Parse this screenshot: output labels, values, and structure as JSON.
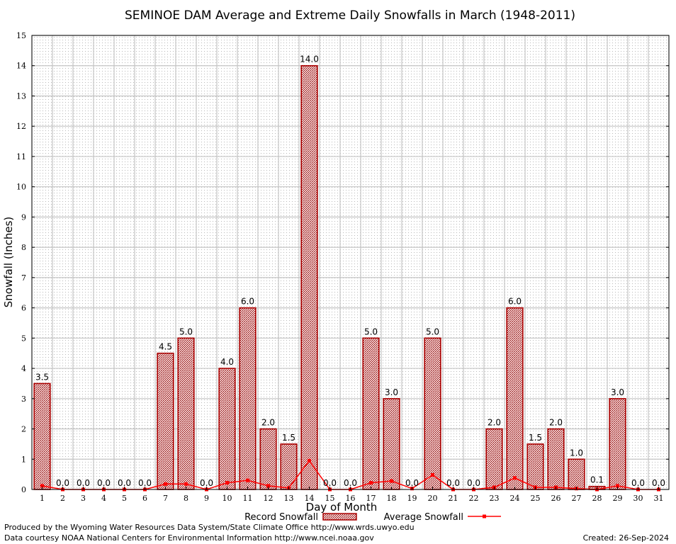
{
  "chart_data": {
    "type": "bar",
    "title": "SEMINOE DAM Average and Extreme Daily Snowfalls in March (1948-2011)",
    "xlabel": "Day of Month",
    "ylabel": "Snowfall (Inches)",
    "ylim": [
      0,
      15
    ],
    "grid": true,
    "legend_position": "bottom",
    "categories": [
      "1",
      "2",
      "3",
      "4",
      "5",
      "6",
      "7",
      "8",
      "9",
      "10",
      "11",
      "12",
      "13",
      "14",
      "15",
      "16",
      "17",
      "18",
      "19",
      "20",
      "21",
      "22",
      "23",
      "24",
      "25",
      "26",
      "27",
      "28",
      "29",
      "30",
      "31"
    ],
    "series": [
      {
        "name": "Record Snowfall",
        "type": "bar",
        "color": "#aa0000",
        "values": [
          3.5,
          0.0,
          0.0,
          0.0,
          0.0,
          0.0,
          4.5,
          5.0,
          0.0,
          4.0,
          6.0,
          2.0,
          1.5,
          14.0,
          0.0,
          0.0,
          5.0,
          3.0,
          0.0,
          5.0,
          0.0,
          0.0,
          2.0,
          6.0,
          1.5,
          2.0,
          1.0,
          0.1,
          3.0,
          0.0,
          0.0
        ],
        "labels": [
          "3.5",
          "0.0",
          "0.0",
          "0.0",
          "0.0",
          "0.0",
          "4.5",
          "5.0",
          "0.0",
          "4.0",
          "6.0",
          "2.0",
          "1.5",
          "14.0",
          "0.0",
          "0.0",
          "5.0",
          "3.0",
          "0.0",
          "5.0",
          "0.0",
          "0.0",
          "2.0",
          "6.0",
          "1.5",
          "2.0",
          "1.0",
          "0.1",
          "3.0",
          "0.0",
          "0.0"
        ]
      },
      {
        "name": "Average Snowfall",
        "type": "line",
        "color": "#ff0000",
        "values": [
          0.12,
          0.0,
          0.0,
          0.0,
          0.0,
          0.0,
          0.18,
          0.18,
          0.0,
          0.22,
          0.3,
          0.12,
          0.05,
          0.95,
          0.0,
          0.0,
          0.22,
          0.28,
          0.03,
          0.48,
          0.0,
          0.0,
          0.07,
          0.38,
          0.07,
          0.07,
          0.03,
          0.0,
          0.12,
          0.0,
          0.0
        ]
      }
    ],
    "y_ticks": [
      "0",
      "1",
      "2",
      "3",
      "4",
      "5",
      "6",
      "7",
      "8",
      "9",
      "10",
      "11",
      "12",
      "13",
      "14",
      "15"
    ]
  },
  "footer": {
    "produced_by": "Produced by the Wyoming Water Resources Data System/State Climate Office http://www.wrds.uwyo.edu",
    "courtesy": "Data courtesy NOAA National Centers for Environmental Information http://www.ncei.noaa.gov",
    "created": "Created:  26-Sep-2024"
  }
}
